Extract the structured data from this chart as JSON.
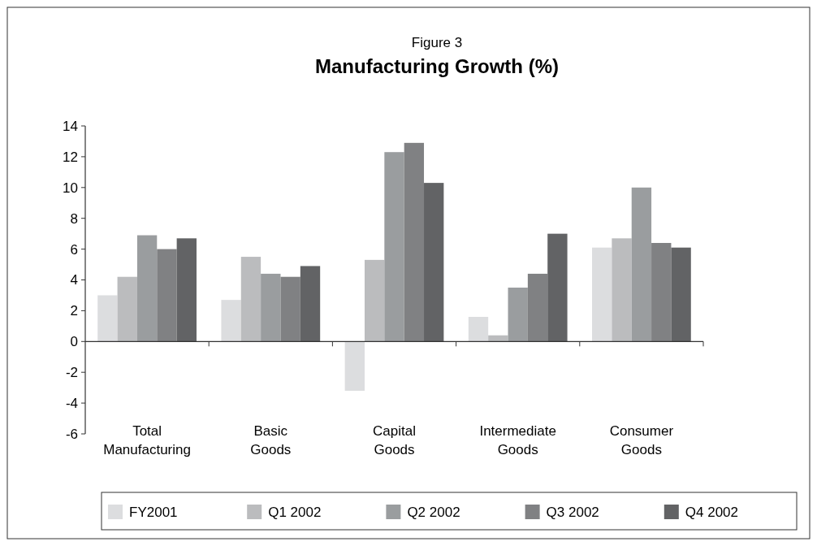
{
  "chart_data": {
    "type": "bar",
    "title": "Manufacturing Growth (%)",
    "subtitle": "Figure 3",
    "categories": [
      "Total Manufacturing",
      "Basic Goods",
      "Capital Goods",
      "Intermediate Goods",
      "Consumer Goods"
    ],
    "series": [
      {
        "name": "FY2001",
        "color": "#dcdddf",
        "values": [
          3.0,
          2.7,
          -3.2,
          1.6,
          6.1
        ]
      },
      {
        "name": "Q1 2002",
        "color": "#bbbcbe",
        "values": [
          4.2,
          5.5,
          5.3,
          0.4,
          6.7
        ]
      },
      {
        "name": "Q2 2002",
        "color": "#9a9d9f",
        "values": [
          6.9,
          4.4,
          12.3,
          3.5,
          10.0
        ]
      },
      {
        "name": "Q3 2002",
        "color": "#808183",
        "values": [
          6.0,
          4.2,
          12.9,
          4.4,
          6.4
        ]
      },
      {
        "name": "Q4 2002",
        "color": "#626365",
        "values": [
          6.7,
          4.9,
          10.3,
          7.0,
          6.1
        ]
      }
    ],
    "ylim": [
      -6,
      14
    ],
    "yticks": [
      -6,
      -4,
      -2,
      0,
      2,
      4,
      6,
      8,
      10,
      12,
      14
    ],
    "legend": "bottom"
  }
}
